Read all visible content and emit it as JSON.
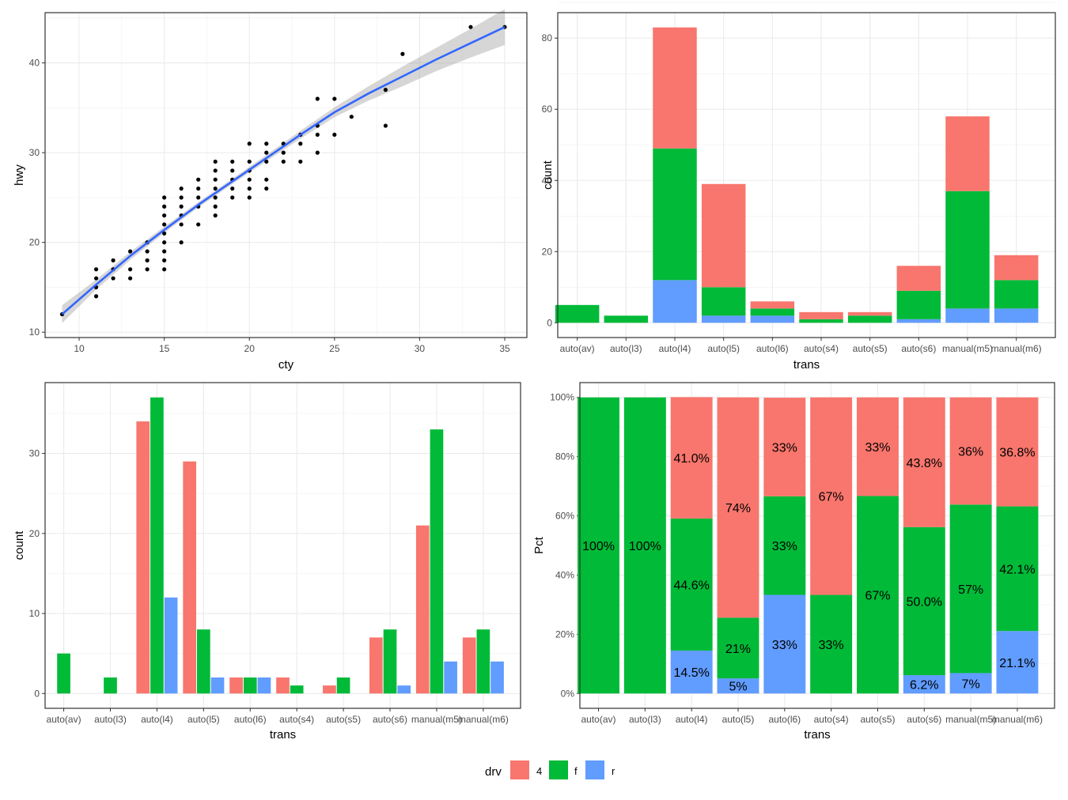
{
  "legend": {
    "title": "drv",
    "items": [
      {
        "label": "4",
        "color": "#F8766D"
      },
      {
        "label": "f",
        "color": "#00BA38"
      },
      {
        "label": "r",
        "color": "#619CFF"
      }
    ]
  },
  "chart_data": [
    {
      "id": "scatter",
      "type": "scatter",
      "xlabel": "cty",
      "ylabel": "hwy",
      "xlim": [
        8.0,
        36.3
      ],
      "ylim": [
        9.4,
        45.6
      ],
      "xticks": [
        10,
        15,
        20,
        25,
        30,
        35
      ],
      "yticks": [
        10,
        20,
        30,
        40
      ],
      "grid": true,
      "points": [
        [
          9,
          12
        ],
        [
          11,
          14
        ],
        [
          11,
          15
        ],
        [
          11,
          16
        ],
        [
          11,
          17
        ],
        [
          12,
          16
        ],
        [
          12,
          17
        ],
        [
          12,
          18
        ],
        [
          13,
          16
        ],
        [
          13,
          17
        ],
        [
          13,
          19
        ],
        [
          14,
          17
        ],
        [
          14,
          18
        ],
        [
          14,
          19
        ],
        [
          14,
          20
        ],
        [
          15,
          17
        ],
        [
          15,
          18
        ],
        [
          15,
          19
        ],
        [
          15,
          20
        ],
        [
          15,
          21
        ],
        [
          15,
          22
        ],
        [
          15,
          23
        ],
        [
          15,
          24
        ],
        [
          15,
          25
        ],
        [
          16,
          20
        ],
        [
          16,
          22
        ],
        [
          16,
          23
        ],
        [
          16,
          24
        ],
        [
          16,
          25
        ],
        [
          16,
          26
        ],
        [
          17,
          22
        ],
        [
          17,
          24
        ],
        [
          17,
          25
        ],
        [
          17,
          26
        ],
        [
          17,
          27
        ],
        [
          18,
          23
        ],
        [
          18,
          24
        ],
        [
          18,
          25
        ],
        [
          18,
          26
        ],
        [
          18,
          27
        ],
        [
          18,
          28
        ],
        [
          18,
          29
        ],
        [
          19,
          25
        ],
        [
          19,
          26
        ],
        [
          19,
          27
        ],
        [
          19,
          28
        ],
        [
          19,
          29
        ],
        [
          20,
          25
        ],
        [
          20,
          26
        ],
        [
          20,
          27
        ],
        [
          20,
          28
        ],
        [
          20,
          29
        ],
        [
          20,
          31
        ],
        [
          21,
          26
        ],
        [
          21,
          27
        ],
        [
          21,
          29
        ],
        [
          21,
          30
        ],
        [
          21,
          31
        ],
        [
          22,
          29
        ],
        [
          22,
          30
        ],
        [
          22,
          31
        ],
        [
          23,
          29
        ],
        [
          23,
          31
        ],
        [
          23,
          32
        ],
        [
          24,
          30
        ],
        [
          24,
          32
        ],
        [
          24,
          33
        ],
        [
          24,
          36
        ],
        [
          25,
          32
        ],
        [
          25,
          36
        ],
        [
          26,
          34
        ],
        [
          28,
          33
        ],
        [
          28,
          37
        ],
        [
          29,
          41
        ],
        [
          33,
          44
        ],
        [
          35,
          44
        ]
      ],
      "smooth": {
        "method": "loess",
        "color": "#3366FF",
        "fit": [
          [
            9,
            12.0
          ],
          [
            11,
            15.3
          ],
          [
            13,
            18.5
          ],
          [
            15,
            21.4
          ],
          [
            17,
            24.2
          ],
          [
            19,
            26.8
          ],
          [
            21,
            29.4
          ],
          [
            23,
            32.0
          ],
          [
            25,
            34.5
          ],
          [
            27,
            36.6
          ],
          [
            29,
            38.5
          ],
          [
            31,
            40.4
          ],
          [
            33,
            42.2
          ],
          [
            35,
            44.0
          ]
        ],
        "band": [
          [
            9,
            1.0
          ],
          [
            11,
            0.55
          ],
          [
            13,
            0.45
          ],
          [
            15,
            0.35
          ],
          [
            17,
            0.3
          ],
          [
            19,
            0.3
          ],
          [
            21,
            0.35
          ],
          [
            23,
            0.45
          ],
          [
            25,
            0.55
          ],
          [
            27,
            0.8
          ],
          [
            29,
            1.1
          ],
          [
            31,
            1.3
          ],
          [
            33,
            1.6
          ],
          [
            35,
            2.0
          ]
        ]
      }
    },
    {
      "id": "stacked",
      "type": "bar",
      "stacking": "stacked",
      "xlabel": "trans",
      "ylabel": "count",
      "ylim": [
        -4.15,
        87.15
      ],
      "yticks": [
        0,
        20,
        40,
        60,
        80
      ],
      "grid": true,
      "categories": [
        "auto(av)",
        "auto(l3)",
        "auto(l4)",
        "auto(l5)",
        "auto(l6)",
        "auto(s4)",
        "auto(s5)",
        "auto(s6)",
        "manual(m5)",
        "manual(m6)"
      ],
      "series": [
        {
          "name": "4",
          "values": [
            0,
            0,
            34,
            29,
            2,
            2,
            1,
            7,
            21,
            7
          ]
        },
        {
          "name": "f",
          "values": [
            5,
            2,
            37,
            8,
            2,
            1,
            2,
            8,
            33,
            8
          ]
        },
        {
          "name": "r",
          "values": [
            0,
            0,
            12,
            2,
            2,
            0,
            0,
            1,
            4,
            4
          ]
        }
      ]
    },
    {
      "id": "dodged",
      "type": "bar",
      "stacking": "dodge",
      "xlabel": "trans",
      "ylabel": "count",
      "ylim": [
        -1.85,
        38.85
      ],
      "yticks": [
        0,
        10,
        20,
        30
      ],
      "grid": true,
      "categories": [
        "auto(av)",
        "auto(l3)",
        "auto(l4)",
        "auto(l5)",
        "auto(l6)",
        "auto(s4)",
        "auto(s5)",
        "auto(s6)",
        "manual(m5)",
        "manual(m6)"
      ],
      "series": [
        {
          "name": "4",
          "values": [
            0,
            0,
            34,
            29,
            2,
            2,
            1,
            7,
            21,
            7
          ]
        },
        {
          "name": "f",
          "values": [
            5,
            2,
            37,
            8,
            2,
            1,
            2,
            8,
            33,
            8
          ]
        },
        {
          "name": "r",
          "values": [
            0,
            0,
            12,
            2,
            2,
            0,
            0,
            1,
            4,
            4
          ]
        }
      ]
    },
    {
      "id": "percent",
      "type": "bar",
      "stacking": "fill",
      "xlabel": "trans",
      "ylabel": "Pct",
      "ylim": [
        -0.05,
        1.05
      ],
      "yticks": [
        0,
        0.2,
        0.4,
        0.6,
        0.8,
        1.0
      ],
      "ytick_labels": [
        "0%",
        "20%",
        "40%",
        "60%",
        "80%",
        "100%"
      ],
      "grid": true,
      "categories": [
        "auto(av)",
        "auto(l3)",
        "auto(l4)",
        "auto(l5)",
        "auto(l6)",
        "auto(s4)",
        "auto(s5)",
        "auto(s6)",
        "manual(m5)",
        "manual(m6)"
      ],
      "series": [
        {
          "name": "4",
          "values": [
            0,
            0,
            0.41,
            0.744,
            0.333,
            0.667,
            0.333,
            0.438,
            0.362,
            0.368
          ],
          "labels": [
            "",
            "",
            "41.0%",
            "74%",
            "33%",
            "67%",
            "33%",
            "43.8%",
            "36%",
            "36.8%"
          ]
        },
        {
          "name": "f",
          "values": [
            1.0,
            1.0,
            0.446,
            0.205,
            0.333,
            0.333,
            0.667,
            0.5,
            0.569,
            0.421
          ],
          "labels": [
            "100%",
            "100%",
            "44.6%",
            "21%",
            "33%",
            "33%",
            "67%",
            "50.0%",
            "57%",
            "42.1%"
          ]
        },
        {
          "name": "r",
          "values": [
            0,
            0,
            0.145,
            0.051,
            0.333,
            0,
            0,
            0.062,
            0.069,
            0.211
          ],
          "labels": [
            "",
            "",
            "14.5%",
            "5%",
            "33%",
            "",
            "",
            "6.2%",
            "7%",
            "21.1%"
          ]
        }
      ]
    }
  ]
}
